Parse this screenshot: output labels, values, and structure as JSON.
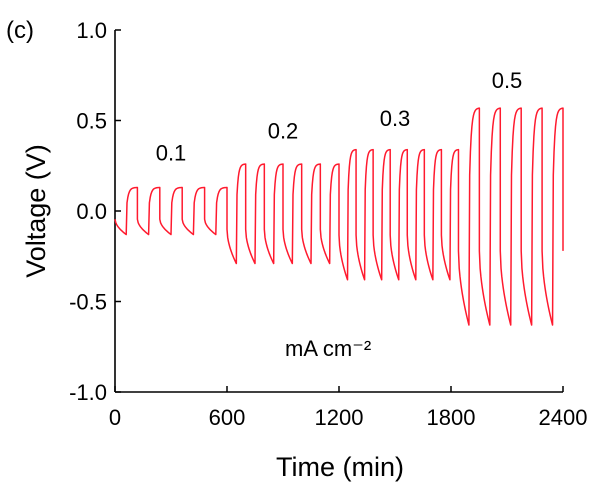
{
  "chart_data": {
    "type": "line",
    "panel_label": "(c)",
    "xlabel": "Time (min)",
    "ylabel": "Voltage (V)",
    "xlim": [
      0,
      2400
    ],
    "ylim": [
      -1.0,
      1.0
    ],
    "xticks": [
      0,
      600,
      1200,
      1800,
      2400
    ],
    "xtick_labels": [
      "0",
      "600",
      "1200",
      "1800",
      "2400"
    ],
    "yticks": [
      -1.0,
      -0.5,
      0.0,
      0.5,
      1.0
    ],
    "ytick_labels": [
      "-1.0",
      "-0.5",
      "0.0",
      "0.5",
      "1.0"
    ],
    "grid": false,
    "line_color": "#ff1a2e",
    "unit_label": "mA cm⁻²",
    "annotations": [
      {
        "text": "0.1",
        "x": 300,
        "y": 0.28
      },
      {
        "text": "0.2",
        "x": 900,
        "y": 0.4
      },
      {
        "text": "0.3",
        "x": 1500,
        "y": 0.47
      },
      {
        "text": "0.5",
        "x": 2100,
        "y": 0.68
      }
    ],
    "series": [
      {
        "segments": [
          {
            "current": "0.1",
            "t_start": 0,
            "t_end": 600,
            "cycles": 5,
            "v_high": 0.13,
            "v_low": -0.13
          },
          {
            "current": "0.2",
            "t_start": 600,
            "t_end": 1200,
            "cycles": 6,
            "v_high": 0.26,
            "v_low": -0.29
          },
          {
            "current": "0.3",
            "t_start": 1200,
            "t_end": 1840,
            "cycles": 7,
            "v_high": 0.34,
            "v_low": -0.38
          },
          {
            "current": "0.5",
            "t_start": 1840,
            "t_end": 2400,
            "cycles": 5,
            "v_high": 0.57,
            "v_low": -0.63
          }
        ]
      }
    ]
  }
}
